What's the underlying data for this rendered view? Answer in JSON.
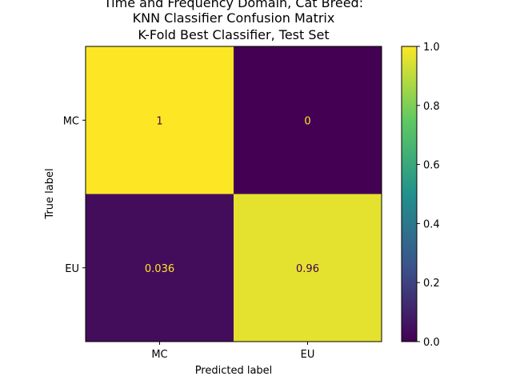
{
  "chart_data": {
    "type": "heatmap",
    "title_lines": [
      "Time and Frequency Domain, Cat Breed:",
      "KNN Classifier Confusion Matrix",
      "K-Fold Best Classifier, Test Set"
    ],
    "xlabel": "Predicted label",
    "ylabel": "True label",
    "x_categories": [
      "MC",
      "EU"
    ],
    "y_categories": [
      "MC",
      "EU"
    ],
    "values": [
      [
        1,
        0
      ],
      [
        0.036,
        0.96
      ]
    ],
    "cell_labels": [
      [
        "1",
        "0"
      ],
      [
        "0.036",
        "0.96"
      ]
    ],
    "colormap": "viridis",
    "colorbar": {
      "range": [
        0.0,
        1.0
      ],
      "ticks": [
        0.0,
        0.2,
        0.4,
        0.6,
        0.8,
        1.0
      ],
      "tick_labels": [
        "0.0",
        "0.2",
        "0.4",
        "0.6",
        "0.8",
        "1.0"
      ]
    },
    "grid": false
  }
}
